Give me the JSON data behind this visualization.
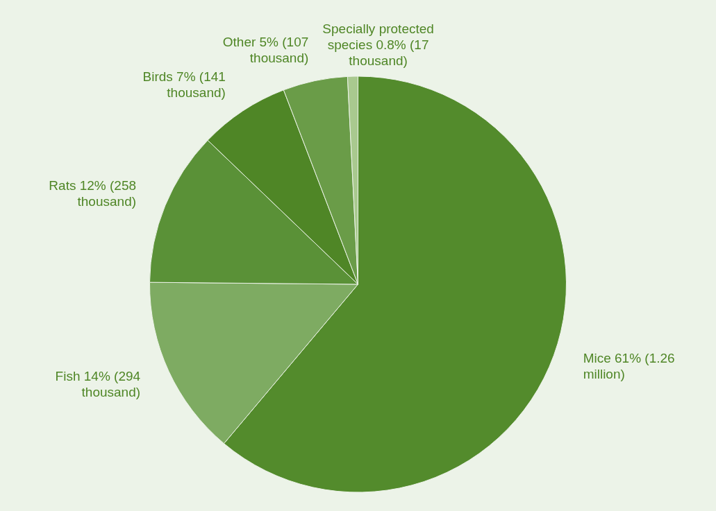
{
  "chart_data": {
    "type": "pie",
    "categories": [
      "Mice",
      "Fish",
      "Rats",
      "Birds",
      "Other",
      "Specially protected species"
    ],
    "values": [
      61,
      14,
      12,
      7,
      5,
      0.8
    ],
    "value_labels": [
      "61% (1.26 million)",
      "14% (294 thousand)",
      "12% (258 thousand)",
      "7% (141 thousand)",
      "5% (107 thousand)",
      "0.8% (17 thousand)"
    ],
    "colors": [
      "#538b2c",
      "#7eab62",
      "#5a9137",
      "#4f8626",
      "#6a9c48",
      "#a9c98f"
    ],
    "legend": false
  }
}
